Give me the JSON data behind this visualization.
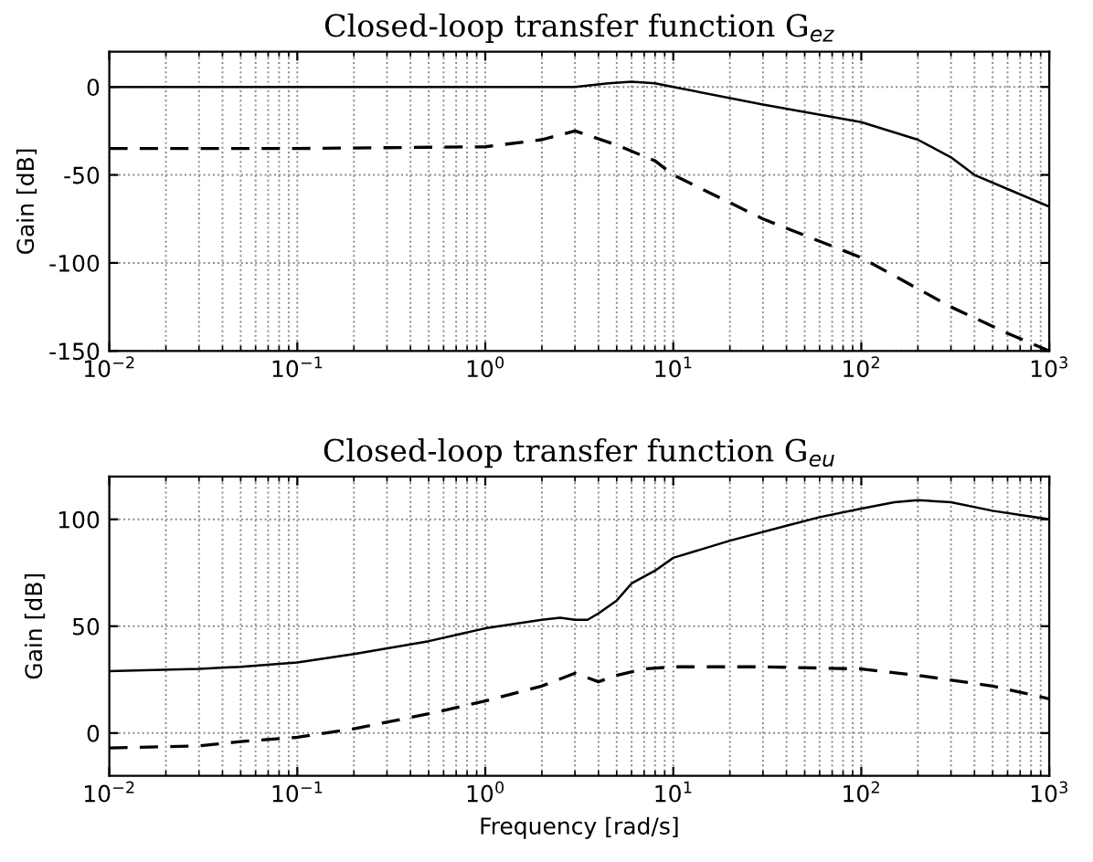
{
  "chart_data": [
    {
      "type": "line",
      "title": "Closed-loop transfer function G$_{ez}$",
      "ylabel": "Gain [dB]",
      "log": "x",
      "grid": true,
      "xlim": [
        0.01,
        1000
      ],
      "xticks": [
        {
          "value": 0.01,
          "label": "10$^{−2}$"
        },
        {
          "value": 0.1,
          "label": "10$^{−1}$"
        },
        {
          "value": 1,
          "label": "10$^{0}$"
        },
        {
          "value": 10,
          "label": "10$^{1}$"
        },
        {
          "value": 100,
          "label": "10$^{2}$"
        },
        {
          "value": 1000,
          "label": "10$^{3}$"
        }
      ],
      "ylim": [
        -150,
        20
      ],
      "yticks": [
        -150,
        -100,
        -50,
        0
      ],
      "series": [
        {
          "color": "#000000",
          "line_style": "solid",
          "x": [
            0.01,
            0.1,
            1,
            3,
            4.5,
            6,
            8,
            10,
            30,
            100,
            200,
            300,
            400,
            600,
            1000
          ],
          "values": [
            0,
            0,
            0,
            0,
            2,
            3,
            2,
            0,
            -10,
            -20,
            -30,
            -40,
            -50,
            -58,
            -68
          ]
        },
        {
          "color": "#000000",
          "line_style": "dashed",
          "x": [
            0.01,
            0.1,
            1,
            2,
            3,
            5,
            8,
            10,
            30,
            100,
            300,
            600,
            1000
          ],
          "values": [
            -35,
            -35,
            -34,
            -30,
            -25,
            -33,
            -42,
            -50,
            -75,
            -97,
            -125,
            -140,
            -150
          ]
        }
      ]
    },
    {
      "type": "line",
      "title": "Closed-loop transfer function G$_{eu}$",
      "xlabel": "Frequency [rad/s]",
      "ylabel": "Gain [dB]",
      "log": "x",
      "grid": true,
      "xlim": [
        0.01,
        1000
      ],
      "xticks": [
        {
          "value": 0.01,
          "label": "10$^{−2}$"
        },
        {
          "value": 0.1,
          "label": "10$^{−1}$"
        },
        {
          "value": 1,
          "label": "10$^{0}$"
        },
        {
          "value": 10,
          "label": "10$^{1}$"
        },
        {
          "value": 100,
          "label": "10$^{2}$"
        },
        {
          "value": 1000,
          "label": "10$^{3}$"
        }
      ],
      "ylim": [
        -20,
        120
      ],
      "yticks": [
        0,
        50,
        100
      ],
      "series": [
        {
          "color": "#000000",
          "line_style": "solid",
          "x": [
            0.01,
            0.03,
            0.05,
            0.1,
            0.2,
            0.5,
            1,
            2,
            2.5,
            3,
            3.5,
            4,
            5,
            6,
            8,
            10,
            20,
            40,
            60,
            100,
            150,
            200,
            300,
            500,
            1000
          ],
          "values": [
            29,
            30,
            31,
            33,
            37,
            43,
            49,
            53,
            54,
            53,
            53,
            56,
            62,
            70,
            76,
            82,
            90,
            97,
            101,
            105,
            108,
            109,
            108,
            104,
            100
          ]
        },
        {
          "color": "#000000",
          "line_style": "dashed",
          "x": [
            0.01,
            0.03,
            0.05,
            0.1,
            0.2,
            0.5,
            1,
            2,
            3,
            4,
            5,
            7,
            10,
            30,
            100,
            200,
            500,
            1000
          ],
          "values": [
            -7,
            -6,
            -4,
            -2,
            2,
            9,
            15,
            22,
            28,
            24,
            27,
            30,
            31,
            31,
            30,
            27,
            22,
            16
          ]
        }
      ]
    }
  ]
}
